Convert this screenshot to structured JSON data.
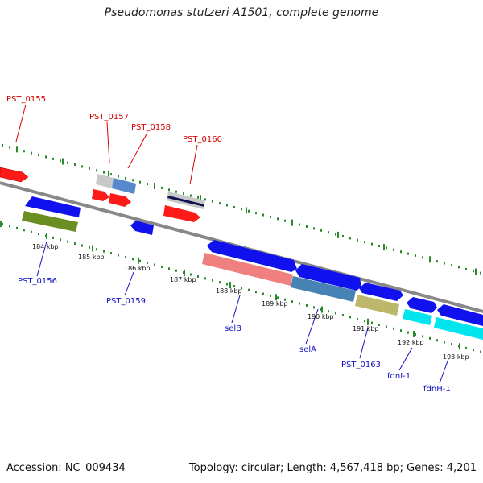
{
  "title": "Pseudomonas stutzeri A1501, complete genome",
  "footer": {
    "accession": "Accession: NC_009434",
    "summary": "Topology: circular; Length: 4,567,418 bp; Genes: 4,201"
  },
  "colors": {
    "backbone": "#888888",
    "tick_green": "#2a8a2a",
    "label_red": "#d40000",
    "label_blue": "#1010c0",
    "red": "#ff1a1a",
    "blue": "#1111ee",
    "light_blue": "#5588cc",
    "gray": "#c8c8c8",
    "olive": "#6b8e23",
    "pink": "#f08080",
    "steel": "#4682b4",
    "khaki": "#bdb76b",
    "cyan": "#00e5ee",
    "navy": "#101050"
  },
  "kbp_labels": [
    "184 kbp",
    "185 kbp",
    "186 kbp",
    "187 kbp",
    "188 kbp",
    "189 kbp",
    "190 kbp",
    "191 kbp",
    "192 kbp",
    "193 kbp"
  ],
  "gene_labels_top": [
    "PST_0155",
    "PST_0157",
    "PST_0158",
    "PST_0160"
  ],
  "gene_labels_bottom": [
    "PST_0156",
    "PST_0159",
    "selB",
    "selA",
    "PST_0163",
    "fdnI-1",
    "fdnH-1"
  ]
}
